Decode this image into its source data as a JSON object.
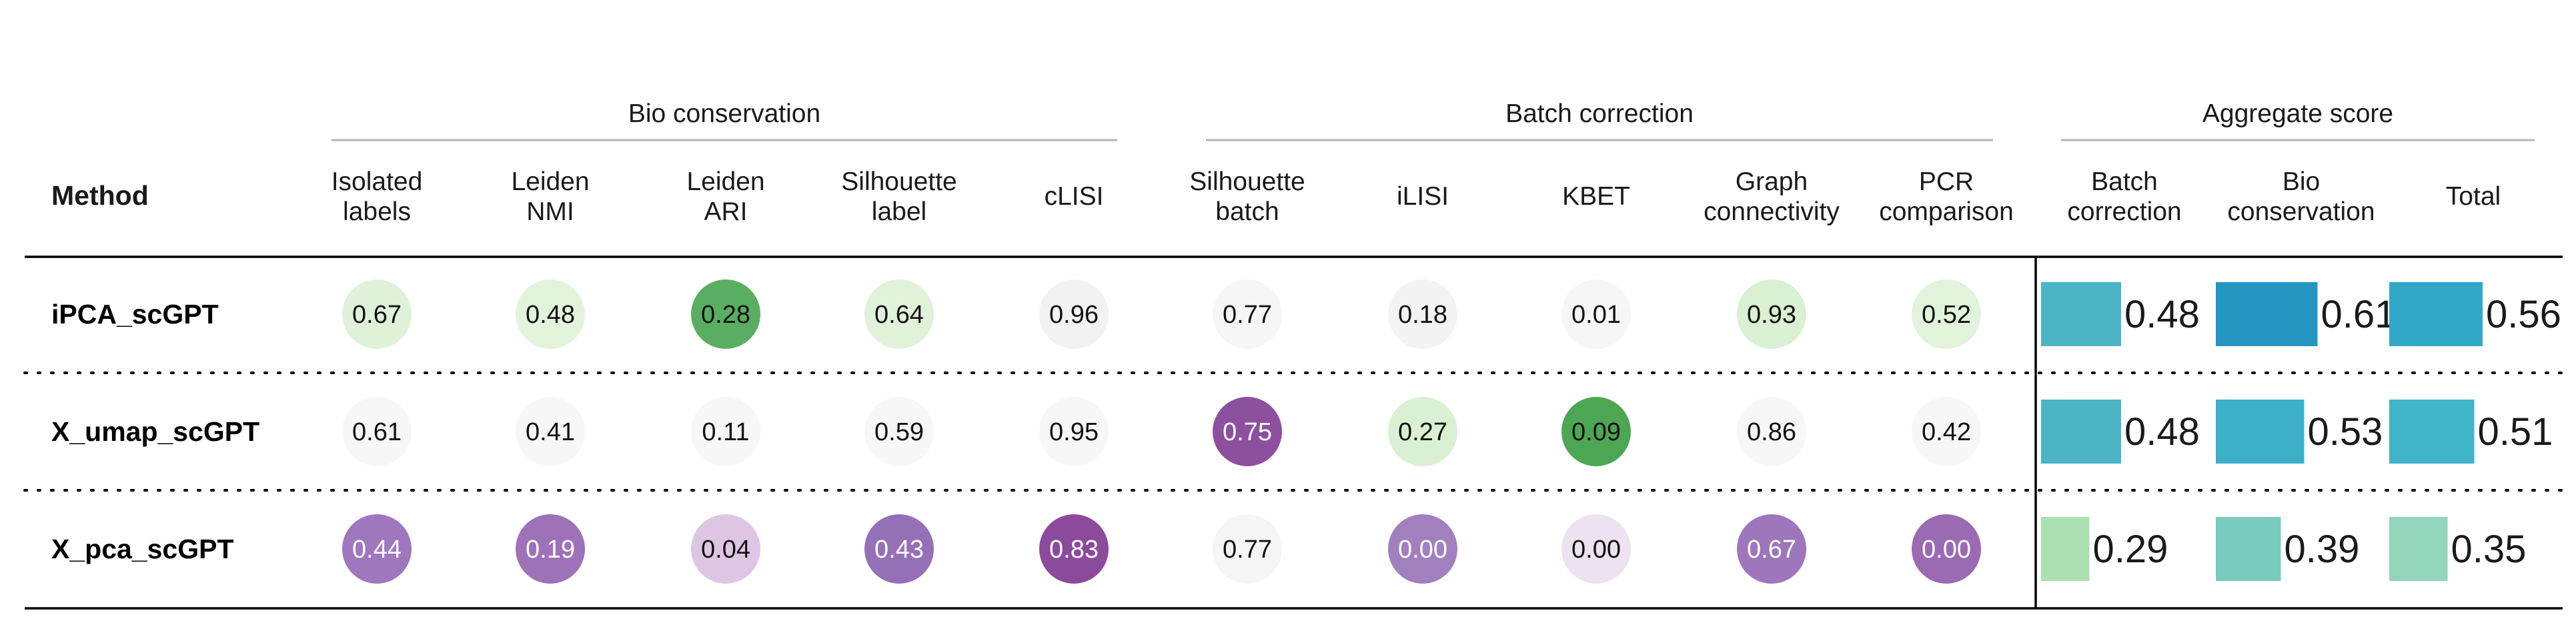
{
  "chart_data": {
    "type": "table",
    "method_header": "Method",
    "groups": [
      {
        "name": "Bio conservation",
        "kind": "circle",
        "columns": [
          {
            "label": [
              "Isolated",
              "labels"
            ]
          },
          {
            "label": [
              "Leiden",
              "NMI"
            ]
          },
          {
            "label": [
              "Leiden",
              "ARI"
            ]
          },
          {
            "label": [
              "Silhouette",
              "label"
            ]
          },
          {
            "label": [
              "cLISI"
            ]
          }
        ]
      },
      {
        "name": "Batch correction",
        "kind": "circle",
        "columns": [
          {
            "label": [
              "Silhouette",
              "batch"
            ]
          },
          {
            "label": [
              "iLISI"
            ]
          },
          {
            "label": [
              "KBET"
            ]
          },
          {
            "label": [
              "Graph",
              "connectivity"
            ]
          },
          {
            "label": [
              "PCR",
              "comparison"
            ]
          }
        ]
      },
      {
        "name": "Aggregate score",
        "kind": "bar",
        "columns": [
          {
            "label": [
              "Batch",
              "correction"
            ]
          },
          {
            "label": [
              "Bio",
              "conservation"
            ]
          },
          {
            "label": [
              "Total"
            ]
          }
        ]
      }
    ],
    "rows": [
      {
        "method": "iPCA_scGPT",
        "values": [
          "0.67",
          "0.48",
          "0.28",
          "0.64",
          "0.96",
          "0.77",
          "0.18",
          "0.01",
          "0.93",
          "0.52",
          "0.48",
          "0.61",
          "0.56"
        ],
        "colors": [
          "#dff2d9",
          "#e2f3dc",
          "#5aae61",
          "#e0f2da",
          "#f2f2f2",
          "#f6f6f6",
          "#f3f3f3",
          "#f6f6f6",
          "#d9f0d3",
          "#e2f3dc",
          "#4bb5c6",
          "#2595c2",
          "#31a8c8"
        ],
        "light_text": [
          false,
          false,
          false,
          false,
          false,
          false,
          false,
          false,
          false,
          false,
          false,
          false,
          false
        ]
      },
      {
        "method": "X_umap_scGPT",
        "values": [
          "0.61",
          "0.41",
          "0.11",
          "0.59",
          "0.95",
          "0.75",
          "0.27",
          "0.09",
          "0.86",
          "0.42",
          "0.48",
          "0.53",
          "0.51"
        ],
        "colors": [
          "#f7f7f7",
          "#f7f7f7",
          "#f7f7f7",
          "#f7f7f7",
          "#f7f7f7",
          "#8c509e",
          "#d9f0d3",
          "#4da653",
          "#f7f7f7",
          "#f7f7f7",
          "#4bb5c6",
          "#3cb0c9",
          "#40b4c8"
        ],
        "light_text": [
          false,
          false,
          false,
          false,
          false,
          true,
          false,
          false,
          false,
          false,
          false,
          false,
          false
        ]
      },
      {
        "method": "X_pca_scGPT",
        "values": [
          "0.44",
          "0.19",
          "0.04",
          "0.43",
          "0.83",
          "0.77",
          "0.00",
          "0.00",
          "0.67",
          "0.00",
          "0.29",
          "0.39",
          "0.35"
        ],
        "colors": [
          "#9f77bd",
          "#9d72b8",
          "#ddc6e3",
          "#9670b6",
          "#8b4a9c",
          "#f5f5f5",
          "#a27fbd",
          "#ece2f0",
          "#9d76bb",
          "#9a6ab3",
          "#acdfb2",
          "#78cbbd",
          "#92d5ba"
        ],
        "light_text": [
          true,
          true,
          false,
          true,
          true,
          false,
          true,
          false,
          true,
          true,
          false,
          false,
          false
        ]
      }
    ]
  }
}
